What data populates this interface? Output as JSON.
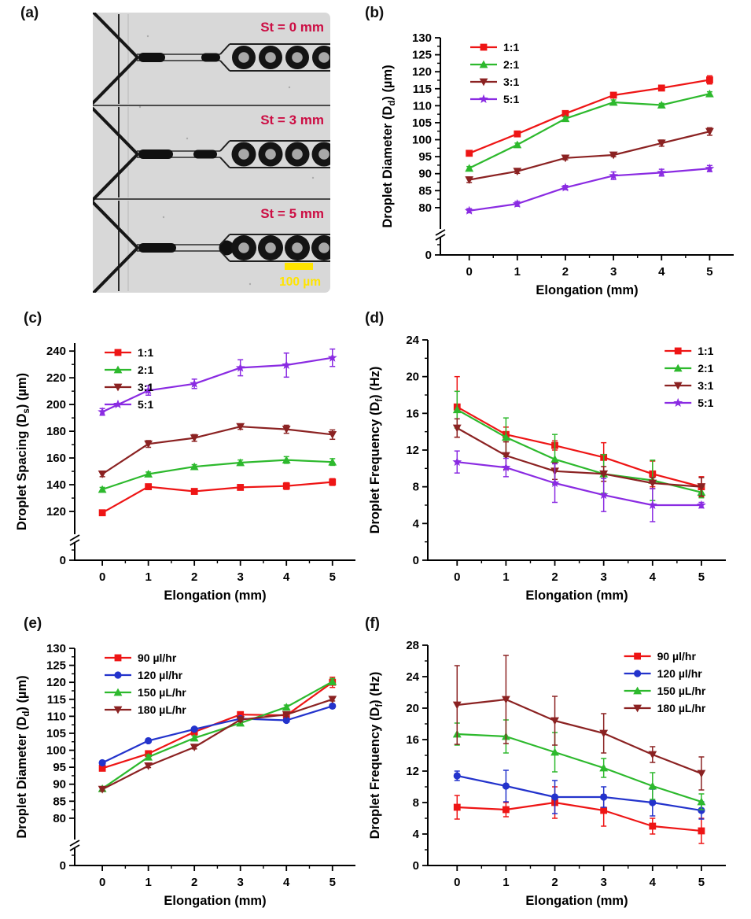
{
  "panel_a": {
    "label": "(a)",
    "frames": [
      {
        "caption": "St = 0 mm"
      },
      {
        "caption": "St = 3 mm"
      },
      {
        "caption": "St = 5 mm"
      }
    ],
    "scale_bar_label": "100 µm",
    "colors": {
      "caption": "#cc0e44",
      "scale": "#ffe400",
      "background": "#d8d8d8",
      "ink": "#161616"
    }
  },
  "chart_data": [
    {
      "id": "b",
      "panel_label": "(b)",
      "type": "line",
      "xlabel": "Elongation (mm)",
      "ylabel": {
        "pre": "Droplet Diameter (D",
        "sub": "d",
        "post": ") (µm)"
      },
      "x": [
        0,
        1,
        2,
        3,
        4,
        5
      ],
      "xticks": [
        "0",
        "1",
        "2",
        "3",
        "4",
        "5"
      ],
      "yticks": [
        80,
        85,
        90,
        95,
        100,
        105,
        110,
        115,
        120,
        125,
        130
      ],
      "ylim": [
        76.5,
        130
      ],
      "axis_break": true,
      "zero_tick_label": "0",
      "legend_position": "top-left",
      "series": [
        {
          "name": "1:1",
          "color": "#ee1515",
          "marker": "square",
          "values": [
            96.0,
            101.7,
            107.7,
            113.1,
            115.2,
            117.6
          ],
          "errors": [
            0.6,
            0.5,
            0.5,
            0.6,
            0.7,
            1.2
          ]
        },
        {
          "name": "2:1",
          "color": "#2db92d",
          "marker": "triangle-up",
          "values": [
            91.6,
            98.5,
            106.2,
            111.0,
            110.2,
            113.5
          ],
          "errors": [
            0.5,
            0.5,
            0.5,
            0.7,
            0.5,
            0.6
          ]
        },
        {
          "name": "3:1",
          "color": "#8b2222",
          "marker": "triangle-down",
          "values": [
            88.2,
            90.7,
            94.6,
            95.5,
            99.0,
            102.4
          ],
          "errors": [
            0.8,
            0.6,
            0.5,
            0.5,
            0.9,
            1.1
          ]
        },
        {
          "name": "5:1",
          "color": "#8a2be2",
          "marker": "star",
          "values": [
            79.1,
            81.1,
            85.9,
            89.4,
            90.3,
            91.5
          ],
          "errors": [
            0.6,
            0.7,
            0.6,
            1.1,
            1.0,
            0.9
          ]
        }
      ]
    },
    {
      "id": "c",
      "panel_label": "(c)",
      "type": "line",
      "xlabel": "Elongation (mm)",
      "ylabel": {
        "pre": "Droplet Spacing (D",
        "sub": "s",
        "post": ") (µm)"
      },
      "x": [
        0,
        1,
        2,
        3,
        4,
        5
      ],
      "xticks": [
        "0",
        "1",
        "2",
        "3",
        "4",
        "5"
      ],
      "yticks": [
        120,
        140,
        160,
        180,
        200,
        220,
        240
      ],
      "ylim": [
        110,
        246
      ],
      "axis_break": true,
      "zero_tick_label": "0",
      "legend_position": "top-left",
      "series": [
        {
          "name": "1:1",
          "color": "#ee1515",
          "marker": "square",
          "values": [
            119.0,
            138.5,
            135.0,
            138.0,
            139.0,
            142.0
          ],
          "errors": [
            2.0,
            2.0,
            1.5,
            1.5,
            2.5,
            2.5
          ]
        },
        {
          "name": "2:1",
          "color": "#2db92d",
          "marker": "triangle-up",
          "values": [
            136.5,
            148.0,
            153.5,
            156.5,
            158.5,
            157.0
          ],
          "errors": [
            1.5,
            1.5,
            1.5,
            2.0,
            2.5,
            2.5
          ]
        },
        {
          "name": "3:1",
          "color": "#8b2222",
          "marker": "triangle-down",
          "values": [
            148.0,
            170.5,
            175.0,
            183.5,
            181.5,
            177.5
          ],
          "errors": [
            2.0,
            2.5,
            2.5,
            2.0,
            3.0,
            3.5
          ]
        },
        {
          "name": "5:1",
          "color": "#8a2be2",
          "marker": "star",
          "values": [
            194.5,
            210.5,
            215.5,
            227.5,
            229.5,
            235.0
          ],
          "errors": [
            2.5,
            3.5,
            3.5,
            6.0,
            9.0,
            6.5
          ]
        }
      ]
    },
    {
      "id": "d",
      "panel_label": "(d)",
      "type": "line",
      "xlabel": "Elongation (mm)",
      "ylabel": {
        "pre": "Droplet Frequency (D",
        "sub": "f",
        "post": ") (Hz)"
      },
      "x": [
        0,
        1,
        2,
        3,
        4,
        5
      ],
      "xticks": [
        "0",
        "1",
        "2",
        "3",
        "4",
        "5"
      ],
      "yticks": [
        0,
        4,
        8,
        12,
        16,
        20,
        24
      ],
      "ylim": [
        0,
        24
      ],
      "axis_break": false,
      "zero_tick_label": "",
      "legend_position": "top-right",
      "series": [
        {
          "name": "1:1",
          "color": "#ee1515",
          "marker": "square",
          "values": [
            16.7,
            13.7,
            12.5,
            11.2,
            9.4,
            8.0
          ],
          "errors": [
            3.3,
            0.8,
            0.5,
            1.6,
            1.4,
            1.1
          ]
        },
        {
          "name": "2:1",
          "color": "#2db92d",
          "marker": "triangle-up",
          "values": [
            16.4,
            13.4,
            11.0,
            9.4,
            8.7,
            7.4
          ],
          "errors": [
            2.0,
            2.1,
            2.7,
            2.1,
            2.2,
            0.6
          ]
        },
        {
          "name": "3:1",
          "color": "#8b2222",
          "marker": "triangle-down",
          "values": [
            14.4,
            11.4,
            9.7,
            9.4,
            8.4,
            8.0
          ],
          "errors": [
            1.0,
            1.5,
            0.9,
            0.8,
            0.6,
            1.0
          ]
        },
        {
          "name": "5:1",
          "color": "#8a2be2",
          "marker": "star",
          "values": [
            10.7,
            10.1,
            8.4,
            7.1,
            6.0,
            6.0
          ],
          "errors": [
            1.2,
            1.0,
            2.1,
            1.8,
            1.8,
            0.3
          ]
        }
      ]
    },
    {
      "id": "e",
      "panel_label": "(e)",
      "type": "line",
      "xlabel": "Elongation (mm)",
      "ylabel": {
        "pre": "Droplet Diameter (D",
        "sub": "d",
        "post": ") (µm)"
      },
      "x": [
        0,
        1,
        2,
        3,
        4,
        5
      ],
      "xticks": [
        "0",
        "1",
        "2",
        "3",
        "4",
        "5"
      ],
      "yticks": [
        80,
        85,
        90,
        95,
        100,
        105,
        110,
        115,
        120,
        125,
        130
      ],
      "ylim": [
        76.5,
        130
      ],
      "axis_break": true,
      "zero_tick_label": "0",
      "legend_position": "top-left",
      "series": [
        {
          "name": "90 µl/hr",
          "color": "#ee1515",
          "marker": "square",
          "values": [
            94.7,
            99.0,
            105.4,
            110.5,
            110.3,
            120.0
          ],
          "errors": [
            0.7,
            0.6,
            0.6,
            0.6,
            0.6,
            1.5
          ]
        },
        {
          "name": "120 µl/hr",
          "color": "#2333cc",
          "marker": "circle",
          "values": [
            96.3,
            102.8,
            106.2,
            109.3,
            108.8,
            113.0
          ],
          "errors": [
            0.6,
            0.5,
            0.5,
            0.5,
            0.5,
            0.5
          ]
        },
        {
          "name": "150 µL/hr",
          "color": "#2db92d",
          "marker": "triangle-up",
          "values": [
            88.7,
            98.0,
            103.6,
            108.0,
            112.7,
            120.2
          ],
          "errors": [
            0.5,
            0.6,
            0.6,
            0.6,
            0.6,
            0.9
          ]
        },
        {
          "name": "180 µL/hr",
          "color": "#8b2222",
          "marker": "triangle-down",
          "values": [
            88.5,
            95.4,
            100.9,
            109.0,
            110.5,
            115.0
          ],
          "errors": [
            0.5,
            0.5,
            0.5,
            0.6,
            0.6,
            0.5
          ]
        }
      ]
    },
    {
      "id": "f",
      "panel_label": "(f)",
      "type": "line",
      "xlabel": "Elongation (mm)",
      "ylabel": {
        "pre": "Droplet Frequency (D",
        "sub": "f",
        "post": ") (Hz)"
      },
      "x": [
        0,
        1,
        2,
        3,
        4,
        5
      ],
      "xticks": [
        "0",
        "1",
        "2",
        "3",
        "4",
        "5"
      ],
      "yticks": [
        0,
        4,
        8,
        12,
        16,
        20,
        24,
        28
      ],
      "ylim": [
        0,
        28
      ],
      "axis_break": false,
      "zero_tick_label": "",
      "legend_position": "top-right",
      "series": [
        {
          "name": "90 µl/hr",
          "color": "#ee1515",
          "marker": "square",
          "values": [
            7.4,
            7.1,
            8.0,
            7.0,
            5.0,
            4.4
          ],
          "errors": [
            1.5,
            0.9,
            2.0,
            2.0,
            1.0,
            1.6
          ]
        },
        {
          "name": "120 µl/hr",
          "color": "#2333cc",
          "marker": "circle",
          "values": [
            11.4,
            10.1,
            8.7,
            8.7,
            8.0,
            7.0
          ],
          "errors": [
            0.6,
            2.0,
            2.1,
            1.3,
            1.7,
            1.1
          ]
        },
        {
          "name": "150 µL/hr",
          "color": "#2db92d",
          "marker": "triangle-up",
          "values": [
            16.7,
            16.4,
            14.4,
            12.4,
            10.1,
            8.1
          ],
          "errors": [
            1.4,
            2.1,
            2.5,
            1.2,
            1.7,
            1.0
          ]
        },
        {
          "name": "180 µL/hr",
          "color": "#8b2222",
          "marker": "triangle-down",
          "values": [
            20.4,
            21.1,
            18.4,
            16.8,
            14.1,
            11.7
          ],
          "errors": [
            5.0,
            5.6,
            3.1,
            2.5,
            1.0,
            2.1
          ]
        }
      ]
    }
  ]
}
